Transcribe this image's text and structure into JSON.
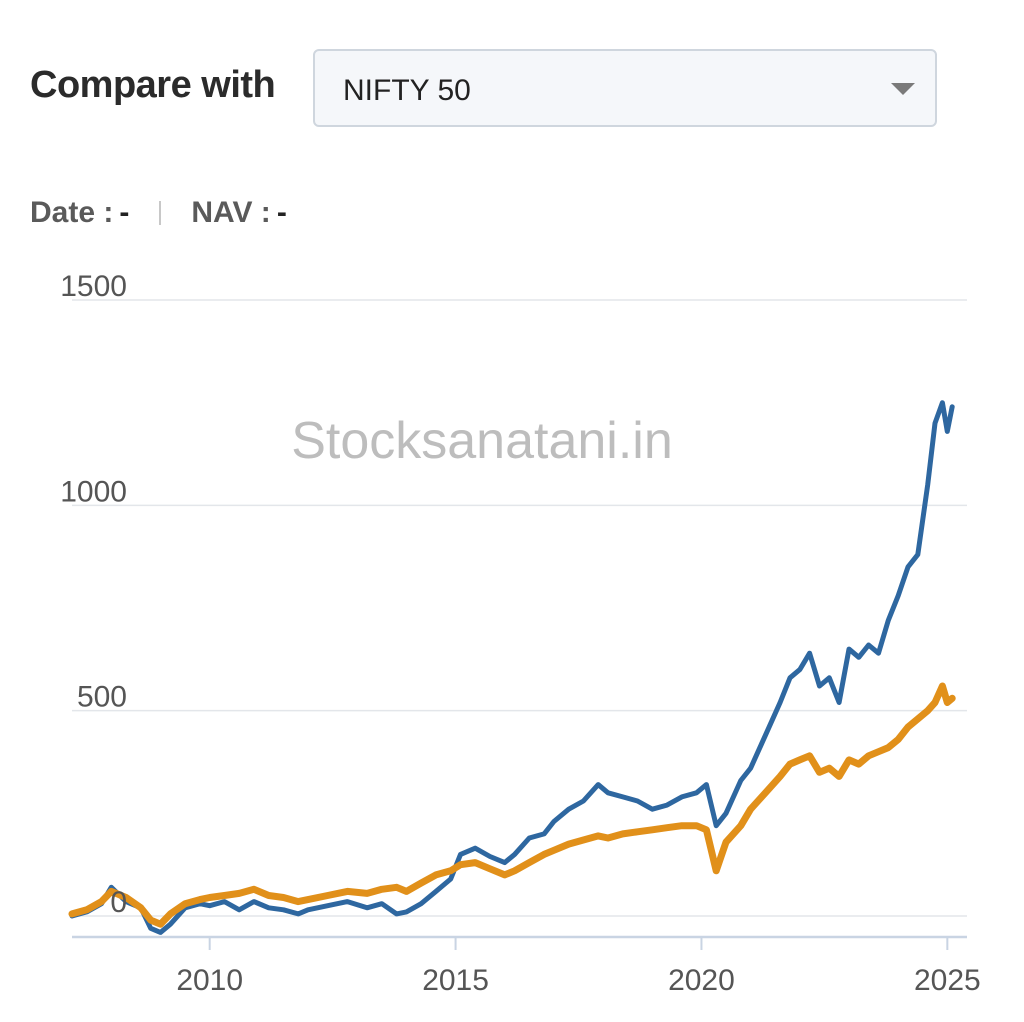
{
  "compare": {
    "label": "Compare with",
    "selected": "NIFTY 50"
  },
  "readout": {
    "date_label": "Date :",
    "date_value": "-",
    "nav_label": "NAV :",
    "nav_value": "-"
  },
  "watermark": "Stocksanatani.in",
  "colors": {
    "fund": "#2e67a0",
    "benchmark": "#e1901a",
    "grid": "#e3e6ea",
    "axis": "#c9d4e3",
    "tick_text": "#555555"
  },
  "chart_data": {
    "type": "line",
    "title": "",
    "xlabel": "",
    "ylabel": "",
    "xlim": [
      2007.2,
      2025.4
    ],
    "ylim": [
      -50,
      1550
    ],
    "x_ticks": [
      2010,
      2015,
      2020,
      2025
    ],
    "y_ticks": [
      0,
      500,
      1000,
      1500
    ],
    "y_tick_labels": [
      "0",
      "500",
      "1000",
      "1500"
    ],
    "grid": true,
    "series": [
      {
        "key": "fund",
        "x": [
          2007.2,
          2007.5,
          2007.8,
          2008.0,
          2008.3,
          2008.6,
          2008.8,
          2009.0,
          2009.2,
          2009.5,
          2009.8,
          2010.0,
          2010.3,
          2010.6,
          2010.9,
          2011.2,
          2011.5,
          2011.8,
          2012.0,
          2012.4,
          2012.8,
          2013.2,
          2013.5,
          2013.8,
          2014.0,
          2014.3,
          2014.6,
          2014.9,
          2015.1,
          2015.4,
          2015.7,
          2016.0,
          2016.2,
          2016.5,
          2016.8,
          2017.0,
          2017.3,
          2017.6,
          2017.9,
          2018.1,
          2018.4,
          2018.7,
          2019.0,
          2019.3,
          2019.6,
          2019.9,
          2020.1,
          2020.3,
          2020.5,
          2020.8,
          2021.0,
          2021.3,
          2021.6,
          2021.8,
          2022.0,
          2022.2,
          2022.4,
          2022.6,
          2022.8,
          2023.0,
          2023.2,
          2023.4,
          2023.6,
          2023.8,
          2024.0,
          2024.2,
          2024.4,
          2024.6,
          2024.75,
          2024.9,
          2025.0,
          2025.1
        ],
        "y": [
          0,
          10,
          30,
          70,
          35,
          20,
          -30,
          -40,
          -20,
          20,
          30,
          25,
          35,
          15,
          35,
          20,
          15,
          5,
          15,
          25,
          35,
          20,
          30,
          5,
          10,
          30,
          60,
          90,
          150,
          165,
          145,
          130,
          150,
          190,
          200,
          230,
          260,
          280,
          320,
          300,
          290,
          280,
          260,
          270,
          290,
          300,
          320,
          220,
          250,
          330,
          360,
          440,
          520,
          580,
          600,
          640,
          560,
          580,
          520,
          650,
          630,
          660,
          640,
          720,
          780,
          850,
          880,
          1050,
          1200,
          1250,
          1180,
          1240
        ]
      },
      {
        "key": "benchmark",
        "x": [
          2007.2,
          2007.5,
          2007.8,
          2008.0,
          2008.3,
          2008.6,
          2008.8,
          2009.0,
          2009.2,
          2009.5,
          2009.8,
          2010.0,
          2010.3,
          2010.6,
          2010.9,
          2011.2,
          2011.5,
          2011.8,
          2012.0,
          2012.4,
          2012.8,
          2013.2,
          2013.5,
          2013.8,
          2014.0,
          2014.3,
          2014.6,
          2014.9,
          2015.1,
          2015.4,
          2015.7,
          2016.0,
          2016.2,
          2016.5,
          2016.8,
          2017.0,
          2017.3,
          2017.6,
          2017.9,
          2018.1,
          2018.4,
          2018.7,
          2019.0,
          2019.3,
          2019.6,
          2019.9,
          2020.1,
          2020.3,
          2020.5,
          2020.8,
          2021.0,
          2021.3,
          2021.6,
          2021.8,
          2022.0,
          2022.2,
          2022.4,
          2022.6,
          2022.8,
          2023.0,
          2023.2,
          2023.4,
          2023.6,
          2023.8,
          2024.0,
          2024.2,
          2024.4,
          2024.6,
          2024.75,
          2024.9,
          2025.0,
          2025.1
        ],
        "y": [
          5,
          15,
          35,
          60,
          45,
          20,
          -10,
          -20,
          5,
          30,
          40,
          45,
          50,
          55,
          65,
          50,
          45,
          35,
          40,
          50,
          60,
          55,
          65,
          70,
          60,
          80,
          100,
          110,
          125,
          130,
          115,
          100,
          110,
          130,
          150,
          160,
          175,
          185,
          195,
          190,
          200,
          205,
          210,
          215,
          220,
          220,
          210,
          110,
          180,
          220,
          260,
          300,
          340,
          370,
          380,
          390,
          350,
          360,
          340,
          380,
          370,
          390,
          400,
          410,
          430,
          460,
          480,
          500,
          520,
          560,
          520,
          530
        ]
      }
    ]
  }
}
